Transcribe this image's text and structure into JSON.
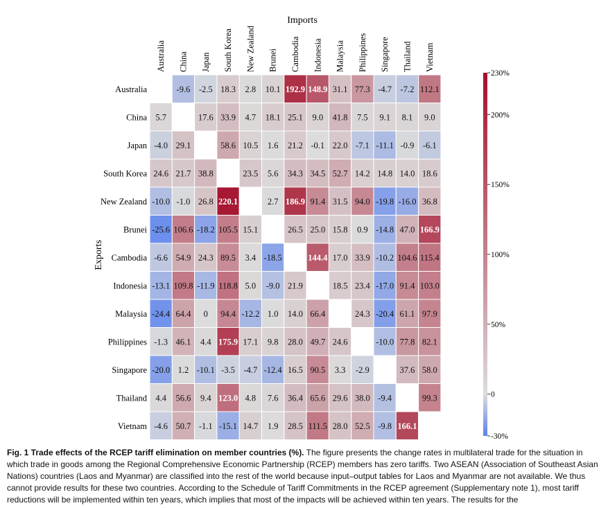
{
  "chart_data": {
    "type": "heatmap",
    "title": "",
    "xlabel": "Imports",
    "ylabel": "Exports",
    "columns": [
      "Australia",
      "China",
      "Japan",
      "South Korea",
      "New Zealand",
      "Brunei",
      "Cambodia",
      "Indonesia",
      "Malaysia",
      "Philippines",
      "Singapore",
      "Thailand",
      "Vietnam"
    ],
    "rows": [
      "Australia",
      "China",
      "Japan",
      "South Korea",
      "New Zealand",
      "Brunei",
      "Cambodia",
      "Indonesia",
      "Malaysia",
      "Philippines",
      "Singapore",
      "Thailand",
      "Vietnam"
    ],
    "values": [
      [
        null,
        -9.6,
        -2.5,
        18.3,
        2.8,
        10.1,
        192.9,
        148.9,
        31.1,
        77.3,
        -4.7,
        -7.2,
        112.1
      ],
      [
        5.7,
        null,
        17.6,
        33.9,
        4.7,
        18.1,
        25.1,
        9.0,
        41.8,
        7.5,
        9.1,
        8.1,
        9.0
      ],
      [
        -4.0,
        29.1,
        null,
        58.6,
        10.5,
        1.6,
        21.2,
        -0.1,
        22.0,
        -7.1,
        -11.1,
        -0.9,
        -6.1
      ],
      [
        24.6,
        21.7,
        38.8,
        null,
        23.5,
        5.6,
        34.3,
        34.5,
        52.7,
        14.2,
        14.8,
        14.0,
        18.6
      ],
      [
        -10.0,
        -1.0,
        26.8,
        220.1,
        null,
        2.7,
        186.9,
        91.4,
        31.5,
        94.0,
        -19.8,
        -16.0,
        36.8
      ],
      [
        -25.6,
        106.6,
        -18.2,
        105.5,
        15.1,
        null,
        26.5,
        25.0,
        15.8,
        0.9,
        -14.8,
        47.0,
        166.9
      ],
      [
        -6.6,
        54.9,
        24.3,
        89.5,
        3.4,
        -18.5,
        null,
        144.4,
        17.0,
        33.9,
        -10.2,
        104.6,
        115.4
      ],
      [
        -13.1,
        109.8,
        -11.9,
        118.8,
        5.0,
        -9.0,
        21.9,
        null,
        18.5,
        23.4,
        -17.0,
        91.4,
        103.0
      ],
      [
        -24.4,
        64.4,
        0,
        94.4,
        -12.2,
        1.0,
        14.0,
        66.4,
        null,
        24.3,
        -20.4,
        61.1,
        97.9
      ],
      [
        -1.3,
        46.1,
        4.4,
        175.9,
        17.1,
        9.8,
        28.0,
        49.7,
        24.6,
        null,
        -10.0,
        77.8,
        82.1
      ],
      [
        -20.0,
        1.2,
        -10.1,
        -3.5,
        -4.7,
        -12.4,
        16.5,
        90.5,
        3.3,
        -2.9,
        null,
        37.6,
        58.0
      ],
      [
        4.4,
        56.6,
        9.4,
        123.0,
        4.8,
        7.6,
        36.4,
        65.6,
        29.6,
        38.0,
        -9.4,
        null,
        99.3
      ],
      [
        -4.6,
        50.7,
        -1.1,
        -15.1,
        14.7,
        1.9,
        28.5,
        111.5,
        28.0,
        52.5,
        -9.8,
        166.1,
        null
      ]
    ],
    "cell_labels": [
      [
        "",
        "-9.6",
        "-2.5",
        "18.3",
        "2.8",
        "10.1",
        "192.9",
        "148.9",
        "31.1",
        "77.3",
        "-4.7",
        "-7.2",
        "112.1"
      ],
      [
        "5.7",
        "",
        "17.6",
        "33.9",
        "4.7",
        "18.1",
        "25.1",
        "9.0",
        "41.8",
        "7.5",
        "9.1",
        "8.1",
        "9.0"
      ],
      [
        "-4.0",
        "29.1",
        "",
        "58.6",
        "10.5",
        "1.6",
        "21.2",
        "-0.1",
        "22.0",
        "-7.1",
        "-11.1",
        "-0.9",
        "-6.1"
      ],
      [
        "24.6",
        "21.7",
        "38.8",
        "",
        "23.5",
        "5.6",
        "34.3",
        "34.5",
        "52.7",
        "14.2",
        "14.8",
        "14.0",
        "18.6"
      ],
      [
        "-10.0",
        "-1.0",
        "26.8",
        "220.1",
        "",
        "2.7",
        "186.9",
        "91.4",
        "31.5",
        "94.0",
        "-19.8",
        "-16.0",
        "36.8"
      ],
      [
        "-25.6",
        "106.6",
        "-18.2",
        "105.5",
        "15.1",
        "",
        "26.5",
        "25.0",
        "15.8",
        "0.9",
        "-14.8",
        "47.0",
        "166.9"
      ],
      [
        "-6.6",
        "54.9",
        "24.3",
        "89.5",
        "3.4",
        "-18.5",
        "",
        "144.4",
        "17.0",
        "33.9",
        "-10.2",
        "104.6",
        "115.4"
      ],
      [
        "-13.1",
        "109.8",
        "-11.9",
        "118.8",
        "5.0",
        "-9.0",
        "21.9",
        "",
        "18.5",
        "23.4",
        "-17.0",
        "91.4",
        "103.0"
      ],
      [
        "-24.4",
        "64.4",
        "0",
        "94.4",
        "-12.2",
        "1.0",
        "14.0",
        "66.4",
        "",
        "24.3",
        "-20.4",
        "61.1",
        "97.9"
      ],
      [
        "-1.3",
        "46.1",
        "4.4",
        "175.9",
        "17.1",
        "9.8",
        "28.0",
        "49.7",
        "24.6",
        "",
        "-10.0",
        "77.8",
        "82.1"
      ],
      [
        "-20.0",
        "1.2",
        "-10.1",
        "-3.5",
        "-4.7",
        "-12.4",
        "16.5",
        "90.5",
        "3.3",
        "-2.9",
        "",
        "37.6",
        "58.0"
      ],
      [
        "4.4",
        "56.6",
        "9.4",
        "123.0",
        "4.8",
        "7.6",
        "36.4",
        "65.6",
        "29.6",
        "38.0",
        "-9.4",
        "",
        "99.3"
      ],
      [
        "-4.6",
        "50.7",
        "-1.1",
        "-15.1",
        "14.7",
        "1.9",
        "28.5",
        "111.5",
        "28.0",
        "52.5",
        "-9.8",
        "166.1",
        ""
      ]
    ],
    "color_scale": {
      "min": -30,
      "max": 230,
      "colors": [
        "#5a82f0",
        "#dcdcdc",
        "#a50f2a"
      ],
      "stops": [
        -30,
        0,
        230
      ]
    },
    "colorbar_ticks": [
      {
        "value": 230,
        "label": "230%"
      },
      {
        "value": 200,
        "label": "200%"
      },
      {
        "value": 150,
        "label": "150%"
      },
      {
        "value": 100,
        "label": "100%"
      },
      {
        "value": 50,
        "label": "50%"
      },
      {
        "value": 0,
        "label": "0"
      },
      {
        "value": -30,
        "label": "-30%"
      }
    ],
    "white_text_threshold": 120
  },
  "caption": {
    "bold": "Fig. 1 Trade effects of the RCEP tariff elimination on member countries (%).",
    "text": " The figure presents the change rates in multilateral trade for the situation in which trade in goods among the Regional Comprehensive Economic Partnership (RCEP) members has zero tariffs. Two ASEAN (Association of Southeast Asian Nations) countries (Laos and Myanmar) are classified into the rest of the world because input–output tables for Laos and Myanmar are not available. We thus cannot provide results for these two countries. According to the Schedule of Tariff Commitments in the RCEP agreement (Supplementary note 1), most tariff reductions will be implemented within ten years, which implies that most of the impacts will be achieved within ten years. The results for the"
  }
}
